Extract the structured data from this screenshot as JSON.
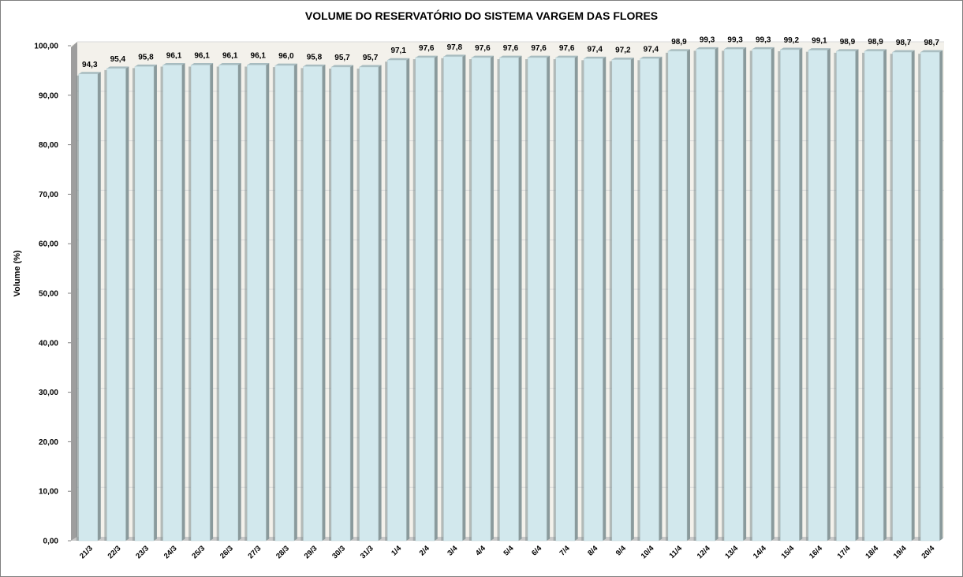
{
  "colors": {
    "bar_front": "#d2e8ed",
    "bar_side": "#8a9a9c",
    "bar_top": "#a8bcc0",
    "wall": "#f3f1eb",
    "floor": "#c9c9c9",
    "left_wall": "#9e9e9e",
    "gridline": "#d9d9d9"
  },
  "chart_data": {
    "type": "bar",
    "title": "VOLUME DO RESERVATÓRIO DO SISTEMA VARGEM DAS FLORES",
    "xlabel": "",
    "ylabel": "Volume (%)",
    "ylim": [
      0,
      100
    ],
    "yticks": [
      "0,00",
      "10,00",
      "20,00",
      "30,00",
      "40,00",
      "50,00",
      "60,00",
      "70,00",
      "80,00",
      "90,00",
      "100,00"
    ],
    "grid": true,
    "legend": "none",
    "categories": [
      "21/3",
      "22/3",
      "23/3",
      "24/3",
      "25/3",
      "26/3",
      "27/3",
      "28/3",
      "29/3",
      "30/3",
      "31/3",
      "1/4",
      "2/4",
      "3/4",
      "4/4",
      "5/4",
      "6/4",
      "7/4",
      "8/4",
      "9/4",
      "10/4",
      "11/4",
      "12/4",
      "13/4",
      "14/4",
      "15/4",
      "16/4",
      "17/4",
      "18/4",
      "19/4",
      "20/4"
    ],
    "values": [
      94.3,
      95.4,
      95.8,
      96.1,
      96.1,
      96.1,
      96.1,
      96.0,
      95.8,
      95.7,
      95.7,
      97.1,
      97.6,
      97.8,
      97.6,
      97.6,
      97.6,
      97.6,
      97.4,
      97.2,
      97.4,
      98.9,
      99.3,
      99.3,
      99.3,
      99.2,
      99.1,
      98.9,
      98.9,
      98.7,
      98.7
    ],
    "data_labels": [
      "94,3",
      "95,4",
      "95,8",
      "96,1",
      "96,1",
      "96,1",
      "96,1",
      "96,0",
      "95,8",
      "95,7",
      "95,7",
      "97,1",
      "97,6",
      "97,8",
      "97,6",
      "97,6",
      "97,6",
      "97,6",
      "97,4",
      "97,2",
      "97,4",
      "98,9",
      "99,3",
      "99,3",
      "99,3",
      "99,2",
      "99,1",
      "98,9",
      "98,9",
      "98,7",
      "98,7"
    ]
  }
}
